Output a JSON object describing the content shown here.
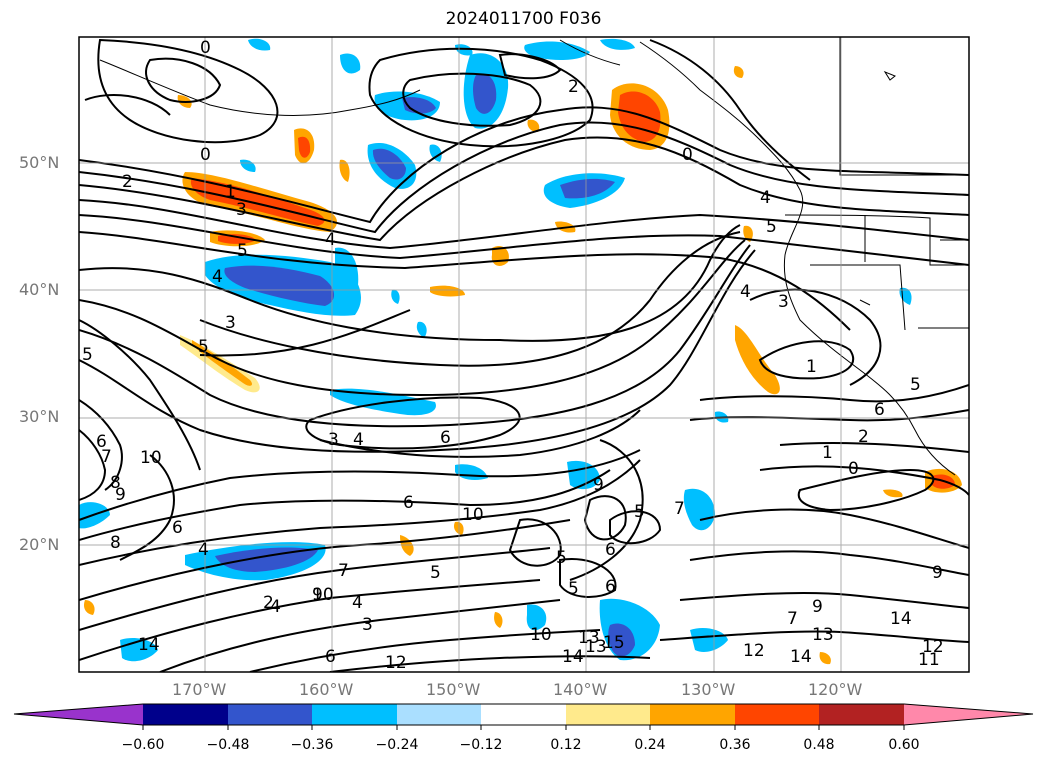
{
  "title": "2024011700 F036",
  "lat_labels": [
    "50°N",
    "40°N",
    "30°N",
    "20°N"
  ],
  "lon_labels": [
    "170°W",
    "160°W",
    "150°W",
    "140°W",
    "130°W",
    "120°W"
  ],
  "colorbar": {
    "ticks": [
      "−0.60",
      "−0.48",
      "−0.36",
      "−0.24",
      "−0.12",
      "0.12",
      "0.24",
      "0.36",
      "0.48",
      "0.60"
    ],
    "colors": [
      "#9933cc",
      "#00008b",
      "#3355cc",
      "#00bfff",
      "#aadfff",
      "#ffffff",
      "#ffea8c",
      "#ffa500",
      "#ff4500",
      "#b22222",
      "#ff88aa"
    ]
  },
  "contour_labels": {
    "upper_left": [
      "0",
      "0",
      "2",
      "1",
      "3",
      "4",
      "5",
      "4",
      "3",
      "5",
      "5"
    ],
    "upper_right": [
      "2",
      "0",
      "4",
      "5",
      "4",
      "3",
      "1",
      "5",
      "6",
      "2",
      "1",
      "0"
    ],
    "middle": [
      "6",
      "3",
      "4",
      "6",
      "6",
      "7",
      "8",
      "10",
      "6",
      "9"
    ],
    "lower": [
      "8",
      "6",
      "4",
      "5",
      "7",
      "9",
      "10",
      "6",
      "5",
      "5",
      "7",
      "4",
      "10",
      "5",
      "9",
      "4",
      "2",
      "3"
    ],
    "bottom": [
      "14",
      "6",
      "12",
      "10",
      "13",
      "14",
      "15",
      "12",
      "14",
      "13",
      "14",
      "7",
      "9",
      "12",
      "11",
      "13",
      "9"
    ]
  }
}
